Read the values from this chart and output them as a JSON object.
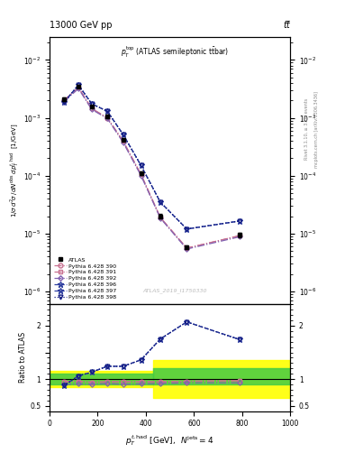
{
  "title_left": "13000 GeV pp",
  "title_right": "tt̅",
  "watermark": "ATLAS_2019_I1750330",
  "right_label1": "Rivet 3.1.10, ≥ 3.1M events",
  "right_label2": "mcplots.cern.ch [arXiv:1306.3436]",
  "ylabel_ratio": "Ratio to ATLAS",
  "xlabel": "p_T^{t,had} [GeV], N^{jets} = 4",
  "xlim": [
    0,
    1000
  ],
  "ylim_main": [
    6e-07,
    0.025
  ],
  "ylim_ratio": [
    0.4,
    2.4
  ],
  "x_pts": [
    60,
    120,
    175,
    240,
    305,
    380,
    460,
    570,
    790
  ],
  "atlas_y": [
    0.0021,
    0.0035,
    0.00155,
    0.00105,
    0.00042,
    0.00011,
    2e-05,
    5.8e-06,
    9.5e-06
  ],
  "atlas_yerr": [
    0.00012,
    0.00018,
    9e-05,
    7e-05,
    2.5e-05,
    8e-06,
    2e-06,
    4e-07,
    8e-07
  ],
  "py390_y": [
    0.002,
    0.00335,
    0.00145,
    0.001,
    0.0004,
    0.000105,
    1.9e-05,
    5.6e-06,
    9.2e-06
  ],
  "py391_y": [
    0.002,
    0.00335,
    0.00145,
    0.001,
    0.0004,
    0.000105,
    1.9e-05,
    5.6e-06,
    9.2e-06
  ],
  "py392_y": [
    0.0019,
    0.0032,
    0.0014,
    0.00097,
    0.00038,
    0.0001,
    1.85e-05,
    5.4e-06,
    8.8e-06
  ],
  "py396_y": [
    0.00185,
    0.0037,
    0.00175,
    0.0013,
    0.00052,
    0.00015,
    3.5e-05,
    1.2e-05,
    1.65e-05
  ],
  "py397_y": [
    0.00185,
    0.0037,
    0.00175,
    0.0013,
    0.00052,
    0.00015,
    3.5e-05,
    1.2e-05,
    1.65e-05
  ],
  "py398_y": [
    0.00185,
    0.0037,
    0.00175,
    0.0013,
    0.00052,
    0.00015,
    3.5e-05,
    1.2e-05,
    1.65e-05
  ],
  "ratio390": [
    0.95,
    0.96,
    0.94,
    0.95,
    0.95,
    0.95,
    0.95,
    0.96,
    0.97
  ],
  "ratio391": [
    0.95,
    0.96,
    0.94,
    0.95,
    0.95,
    0.95,
    0.95,
    0.96,
    0.97
  ],
  "ratio392": [
    0.9,
    0.91,
    0.9,
    0.92,
    0.9,
    0.91,
    0.92,
    0.93,
    0.93
  ],
  "ratio396": [
    0.88,
    1.06,
    1.13,
    1.24,
    1.24,
    1.36,
    1.75,
    2.07,
    1.74
  ],
  "ratio397": [
    0.88,
    1.06,
    1.13,
    1.24,
    1.24,
    1.36,
    1.75,
    2.07,
    1.74
  ],
  "ratio398": [
    0.88,
    1.06,
    1.13,
    1.24,
    1.24,
    1.36,
    1.75,
    2.07,
    1.74
  ],
  "color390": "#c87090",
  "color391": "#c87090",
  "color392": "#8060b0",
  "color396": "#3040a0",
  "color397": "#3040a0",
  "color398": "#101880",
  "ls390": "-.",
  "ls391": "-.",
  "ls392": "-.",
  "ls396": "--",
  "ls397": "--",
  "ls398": ":"
}
